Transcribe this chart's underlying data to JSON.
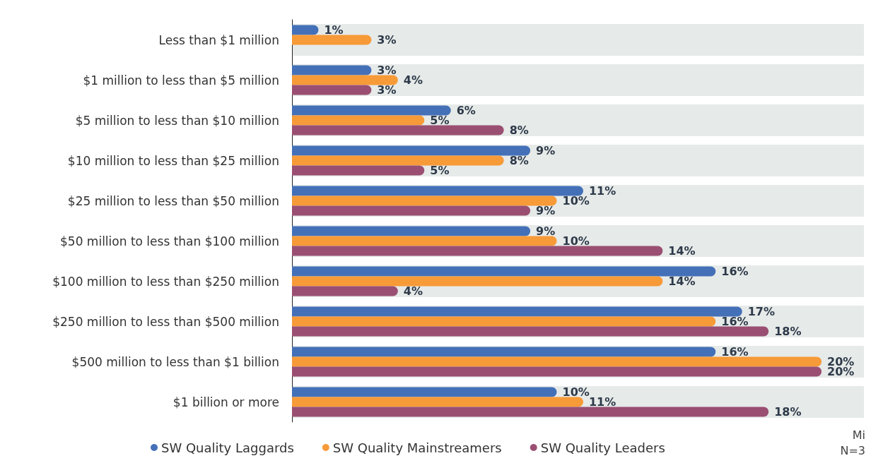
{
  "chart_data": {
    "type": "bar",
    "orientation": "horizontal",
    "data_labels": true,
    "legend": "bottom",
    "categories": [
      "Less than $1 million",
      "$1 million to less than $5 million",
      "$5 million to less than $10 million",
      "$10 million to less than $25 million",
      "$25 million to less than $50 million",
      "$50 million to less than $100 million",
      "$100 million to less than $250 million",
      "$250 million to less than $500 million",
      "$500 million to less than $1 billion",
      "$1 billion or more"
    ],
    "series": [
      {
        "name": "SW Quality Laggards",
        "color": "#4470b8",
        "values": [
          1,
          3,
          6,
          9,
          11,
          9,
          16,
          17,
          16,
          10
        ],
        "value_labels": [
          "1%",
          "3%",
          "6%",
          "9%",
          "11%",
          "9%",
          "16%",
          "17%",
          "16%",
          "10%"
        ]
      },
      {
        "name": "SW Quality Mainstreamers",
        "color": "#f79a38",
        "values": [
          3,
          4,
          5,
          8,
          10,
          10,
          14,
          16,
          20,
          11
        ],
        "value_labels": [
          "3%",
          "4%",
          "5%",
          "8%",
          "10%",
          "10%",
          "14%",
          "16%",
          "20%",
          "11%"
        ]
      },
      {
        "name": "SW Quality Leaders",
        "color": "#9a4f72",
        "values": [
          null,
          3,
          8,
          5,
          9,
          14,
          4,
          18,
          20,
          18
        ],
        "value_labels": [
          null,
          "3%",
          "8%",
          "5%",
          "9%",
          "14%",
          "4%",
          "18%",
          "20%",
          "18%"
        ]
      }
    ],
    "annotations": [
      "Mi",
      "N=3"
    ]
  }
}
